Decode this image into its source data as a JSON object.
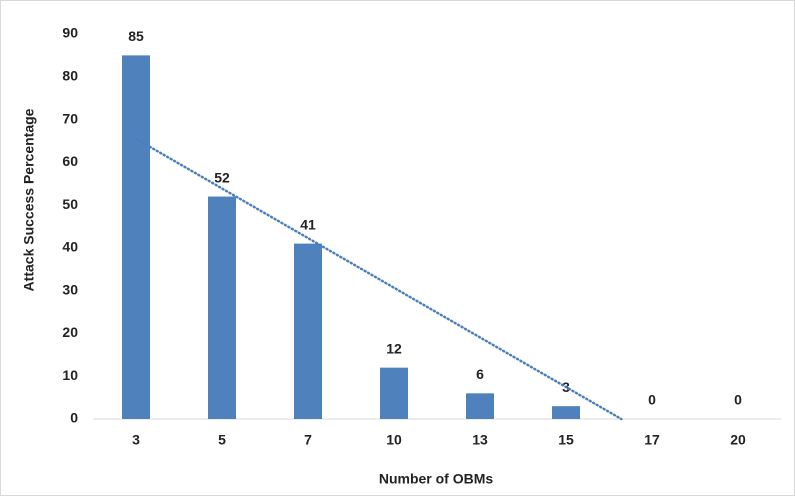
{
  "chart_data": {
    "type": "bar",
    "x_label": "Number of OBMs",
    "y_label": "Attack Success Percentage",
    "categories": [
      "3",
      "5",
      "7",
      "10",
      "13",
      "15",
      "17",
      "20"
    ],
    "values": [
      85,
      52,
      41,
      12,
      6,
      3,
      0,
      0
    ],
    "color": "#4f81bd",
    "ylim": [
      0,
      90
    ],
    "yticks": [
      0,
      10,
      20,
      30,
      40,
      50,
      60,
      70,
      80,
      90
    ],
    "grid": false,
    "trendline": "linear",
    "trendline_color": "#4a7ebb"
  }
}
